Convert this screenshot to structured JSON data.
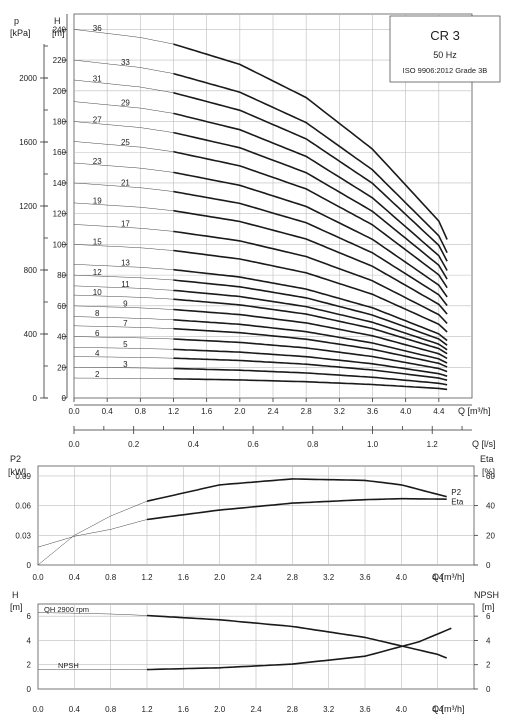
{
  "info_box": {
    "model": "CR 3",
    "frequency": "50 Hz",
    "standard": "ISO 9906:2012 Grade 3B"
  },
  "chart_data": [
    {
      "type": "line",
      "id": "head",
      "x_label": "Q [m³/h]",
      "y_label_top": "H",
      "y_label_unit": "[m]",
      "p_label_top": "p",
      "p_label_unit": "[kPa]",
      "second_x_label": "Q [l/s]",
      "xlim": [
        0,
        4.8
      ],
      "ylim": [
        0,
        250
      ],
      "plim": [
        0,
        2400
      ],
      "x_ticks": [
        "0.0",
        "0.4",
        "0.8",
        "1.2",
        "1.6",
        "2.0",
        "2.4",
        "2.8",
        "3.2",
        "3.6",
        "4.0",
        "4.4"
      ],
      "y_ticks": [
        "0",
        "20",
        "40",
        "60",
        "80",
        "100",
        "120",
        "140",
        "160",
        "180",
        "200",
        "220",
        "240"
      ],
      "p_ticks": [
        "0",
        "400",
        "800",
        "1200",
        "1600",
        "2000"
      ],
      "second_x_ticks": [
        "0.0",
        "0.2",
        "0.4",
        "0.6",
        "0.8",
        "1.0",
        "1.2"
      ],
      "stage_curve": {
        "x": [
          0,
          0.8,
          1.2,
          2.0,
          2.8,
          3.6,
          4.4,
          4.5
        ],
        "shape": [
          1.0,
          0.978,
          0.96,
          0.905,
          0.815,
          0.675,
          0.48,
          0.43
        ]
      },
      "series": [
        {
          "name": "36",
          "shutoff": 240
        },
        {
          "name": "33",
          "shutoff": 220
        },
        {
          "name": "31",
          "shutoff": 207
        },
        {
          "name": "29",
          "shutoff": 193
        },
        {
          "name": "27",
          "shutoff": 180
        },
        {
          "name": "25",
          "shutoff": 167
        },
        {
          "name": "23",
          "shutoff": 153
        },
        {
          "name": "21",
          "shutoff": 140
        },
        {
          "name": "19",
          "shutoff": 127
        },
        {
          "name": "17",
          "shutoff": 113
        },
        {
          "name": "15",
          "shutoff": 100
        },
        {
          "name": "13",
          "shutoff": 87
        },
        {
          "name": "12",
          "shutoff": 80
        },
        {
          "name": "11",
          "shutoff": 73
        },
        {
          "name": "10",
          "shutoff": 67
        },
        {
          "name": "9",
          "shutoff": 60
        },
        {
          "name": "8",
          "shutoff": 53
        },
        {
          "name": "7",
          "shutoff": 47
        },
        {
          "name": "6",
          "shutoff": 40
        },
        {
          "name": "5",
          "shutoff": 33
        },
        {
          "name": "4",
          "shutoff": 27
        },
        {
          "name": "3",
          "shutoff": 20
        },
        {
          "name": "2",
          "shutoff": 13
        }
      ]
    },
    {
      "type": "line",
      "id": "power",
      "x_label": "Q [m³/h]",
      "left_label_top": "P2",
      "left_label_unit": "[kW]",
      "right_label_top": "Eta",
      "right_label_unit": "[%]",
      "xlim": [
        0,
        4.8
      ],
      "ylim": [
        0,
        0.1
      ],
      "rlim": [
        0,
        66.7
      ],
      "x_ticks": [
        "0.0",
        "0.4",
        "0.8",
        "1.2",
        "1.6",
        "2.0",
        "2.4",
        "2.8",
        "3.2",
        "3.6",
        "4.0",
        "4.4"
      ],
      "y_ticks": [
        "0",
        "0.03",
        "0.06",
        "0.09"
      ],
      "r_ticks": [
        "0",
        "20",
        "40",
        "60"
      ],
      "series": [
        {
          "name": "P2",
          "axis": "left",
          "x": [
            0,
            0.4,
            0.8,
            1.2,
            2.0,
            2.8,
            3.6,
            4.0,
            4.5
          ],
          "y": [
            0.018,
            0.029,
            0.036,
            0.046,
            0.0555,
            0.0625,
            0.066,
            0.067,
            0.0665
          ]
        },
        {
          "name": "Eta",
          "axis": "right",
          "x": [
            0,
            0.4,
            0.8,
            1.2,
            2.0,
            2.8,
            3.6,
            4.0,
            4.5
          ],
          "y": [
            0,
            20,
            33,
            43,
            54,
            58,
            57,
            54,
            46
          ]
        }
      ]
    },
    {
      "type": "line",
      "id": "npsh",
      "x_label": "Q [m³/h]",
      "left_label_top": "H",
      "left_label_unit": "[m]",
      "right_label_top": "NPSH",
      "right_label_unit": "[m]",
      "xlim": [
        0,
        4.8
      ],
      "ylim": [
        0,
        7
      ],
      "x_ticks": [
        "0.0",
        "0.4",
        "0.8",
        "1.2",
        "1.6",
        "2.0",
        "2.4",
        "2.8",
        "3.2",
        "3.6",
        "4.0",
        "4.4"
      ],
      "y_ticks": [
        "0",
        "2",
        "4",
        "6"
      ],
      "qh_label": "QH 2900 rpm",
      "npsh_label": "NPSH",
      "series": [
        {
          "name": "QH 2900 rpm",
          "x": [
            0,
            0.8,
            1.2,
            2.0,
            2.8,
            3.6,
            4.4,
            4.5
          ],
          "y": [
            6.3,
            6.18,
            6.05,
            5.7,
            5.15,
            4.25,
            2.85,
            2.55
          ]
        },
        {
          "name": "NPSH",
          "x": [
            0,
            0.8,
            1.2,
            2.0,
            2.8,
            3.6,
            4.2,
            4.55
          ],
          "y": [
            1.6,
            1.6,
            1.6,
            1.75,
            2.05,
            2.7,
            3.9,
            5.0
          ]
        }
      ]
    }
  ]
}
